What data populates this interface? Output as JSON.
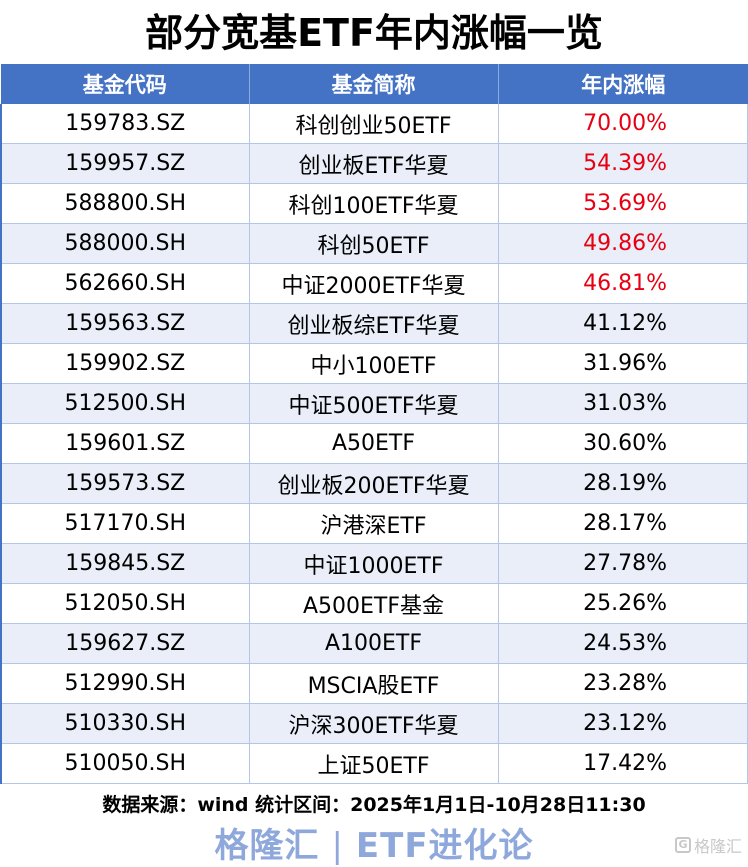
{
  "title": "部分宽基ETF年内涨幅一览",
  "table": {
    "headers": [
      "基金代码",
      "基金简称",
      "年内涨幅"
    ],
    "rows": [
      {
        "code": "159783.SZ",
        "name": "科创创业50ETF",
        "ytd": "70.00%",
        "highlight": true
      },
      {
        "code": "159957.SZ",
        "name": "创业板ETF华夏",
        "ytd": "54.39%",
        "highlight": true
      },
      {
        "code": "588800.SH",
        "name": "科创100ETF华夏",
        "ytd": "53.69%",
        "highlight": true
      },
      {
        "code": "588000.SH",
        "name": "科创50ETF",
        "ytd": "49.86%",
        "highlight": true
      },
      {
        "code": "562660.SH",
        "name": "中证2000ETF华夏",
        "ytd": "46.81%",
        "highlight": true
      },
      {
        "code": "159563.SZ",
        "name": "创业板综ETF华夏",
        "ytd": "41.12%",
        "highlight": false
      },
      {
        "code": "159902.SZ",
        "name": "中小100ETF",
        "ytd": "31.96%",
        "highlight": false
      },
      {
        "code": "512500.SH",
        "name": "中证500ETF华夏",
        "ytd": "31.03%",
        "highlight": false
      },
      {
        "code": "159601.SZ",
        "name": "A50ETF",
        "ytd": "30.60%",
        "highlight": false
      },
      {
        "code": "159573.SZ",
        "name": "创业板200ETF华夏",
        "ytd": "28.19%",
        "highlight": false
      },
      {
        "code": "517170.SH",
        "name": "沪港深ETF",
        "ytd": "28.17%",
        "highlight": false
      },
      {
        "code": "159845.SZ",
        "name": "中证1000ETF",
        "ytd": "27.78%",
        "highlight": false
      },
      {
        "code": "512050.SH",
        "name": "A500ETF基金",
        "ytd": "25.26%",
        "highlight": false
      },
      {
        "code": "159627.SZ",
        "name": "A100ETF",
        "ytd": "24.53%",
        "highlight": false
      },
      {
        "code": "512990.SH",
        "name": "MSCIA股ETF",
        "ytd": "23.28%",
        "highlight": false
      },
      {
        "code": "510330.SH",
        "name": "沪深300ETF华夏",
        "ytd": "23.12%",
        "highlight": false
      },
      {
        "code": "510050.SH",
        "name": "上证50ETF",
        "ytd": "17.42%",
        "highlight": false
      }
    ]
  },
  "footer": {
    "source": "数据来源：wind 统计区间：2025年1月1日-10月28日11:30",
    "brand_left": "格隆汇",
    "brand_sep": "|",
    "brand_right": "ETF进化论",
    "watermark": "格隆汇",
    "watermark_icon": "G"
  },
  "colors": {
    "header_bg": "#4472c4",
    "row_alt_bg": "#e9eef8",
    "highlight_text": "#e60012",
    "brand_text": "#8fa8dc"
  }
}
